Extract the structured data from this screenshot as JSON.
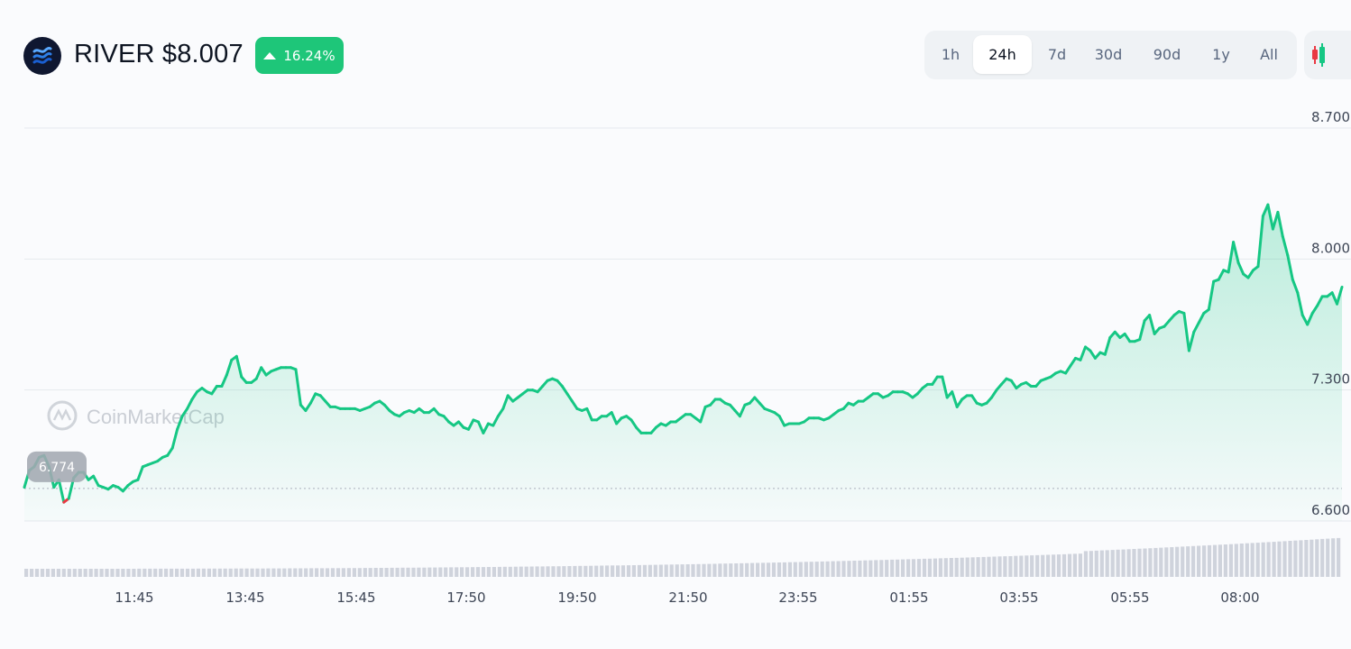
{
  "header": {
    "title": "RIVER $8.007",
    "change": "16.24%",
    "change_direction": "up",
    "logo_icon": "river-logo-icon"
  },
  "ranges": [
    {
      "label": "1h",
      "active": false
    },
    {
      "label": "24h",
      "active": true
    },
    {
      "label": "7d",
      "active": false
    },
    {
      "label": "30d",
      "active": false
    },
    {
      "label": "90d",
      "active": false
    },
    {
      "label": "1y",
      "active": false
    },
    {
      "label": "All",
      "active": false
    }
  ],
  "candle_icon": "candlestick-icon",
  "watermark": "CoinMarketCap",
  "colors": {
    "up": "#16c784",
    "down": "#ea3943",
    "accent": "#1ec679"
  },
  "chart_data": {
    "type": "area",
    "title": "",
    "xlabel": "",
    "ylabel": "",
    "ylim": [
      6.6,
      8.7
    ],
    "y_ticks": [
      "8.700",
      "8.000",
      "7.300",
      "6.600"
    ],
    "x_ticks": [
      "11:45",
      "13:45",
      "15:45",
      "17:50",
      "19:50",
      "21:50",
      "23:55",
      "01:55",
      "03:55",
      "05:55",
      "08:00"
    ],
    "reference_price": 6.774,
    "reference_label": "6.774",
    "grid": true,
    "series": [
      {
        "values": [
          6.78,
          6.87,
          6.89,
          6.94,
          6.95,
          6.89,
          6.78,
          6.82,
          6.7,
          6.72,
          6.83,
          6.86,
          6.86,
          6.82,
          6.84,
          6.79,
          6.78,
          6.77,
          6.79,
          6.78,
          6.76,
          6.79,
          6.81,
          6.82,
          6.89,
          6.9,
          6.91,
          6.92,
          6.94,
          6.95,
          6.99,
          7.09,
          7.16,
          7.2,
          7.25,
          7.29,
          7.31,
          7.29,
          7.28,
          7.32,
          7.32,
          7.38,
          7.46,
          7.48,
          7.37,
          7.34,
          7.34,
          7.36,
          7.42,
          7.38,
          7.4,
          7.41,
          7.42,
          7.42,
          7.42,
          7.41,
          7.22,
          7.19,
          7.23,
          7.28,
          7.27,
          7.24,
          7.21,
          7.21,
          7.2,
          7.2,
          7.2,
          7.2,
          7.19,
          7.2,
          7.21,
          7.23,
          7.24,
          7.22,
          7.19,
          7.17,
          7.16,
          7.18,
          7.19,
          7.18,
          7.2,
          7.18,
          7.18,
          7.2,
          7.17,
          7.16,
          7.13,
          7.11,
          7.13,
          7.1,
          7.09,
          7.14,
          7.13,
          7.07,
          7.12,
          7.11,
          7.16,
          7.2,
          7.27,
          7.24,
          7.26,
          7.28,
          7.3,
          7.3,
          7.29,
          7.32,
          7.35,
          7.36,
          7.35,
          7.32,
          7.28,
          7.24,
          7.2,
          7.19,
          7.2,
          7.14,
          7.14,
          7.16,
          7.16,
          7.18,
          7.12,
          7.15,
          7.16,
          7.14,
          7.1,
          7.07,
          7.07,
          7.07,
          7.1,
          7.12,
          7.11,
          7.13,
          7.13,
          7.15,
          7.17,
          7.17,
          7.15,
          7.13,
          7.21,
          7.22,
          7.25,
          7.25,
          7.23,
          7.22,
          7.19,
          7.16,
          7.22,
          7.23,
          7.26,
          7.23,
          7.2,
          7.19,
          7.18,
          7.16,
          7.11,
          7.12,
          7.12,
          7.12,
          7.13,
          7.15,
          7.15,
          7.15,
          7.14,
          7.15,
          7.17,
          7.19,
          7.2,
          7.23,
          7.22,
          7.24,
          7.24,
          7.26,
          7.28,
          7.28,
          7.26,
          7.27,
          7.29,
          7.29,
          7.29,
          7.28,
          7.26,
          7.28,
          7.31,
          7.33,
          7.33,
          7.37,
          7.37,
          7.26,
          7.29,
          7.21,
          7.25,
          7.27,
          7.27,
          7.23,
          7.22,
          7.23,
          7.26,
          7.3,
          7.33,
          7.36,
          7.35,
          7.31,
          7.33,
          7.34,
          7.32,
          7.32,
          7.35,
          7.36,
          7.37,
          7.39,
          7.4,
          7.39,
          7.43,
          7.47,
          7.46,
          7.53,
          7.51,
          7.47,
          7.5,
          7.49,
          7.58,
          7.61,
          7.58,
          7.6,
          7.56,
          7.56,
          7.57,
          7.67,
          7.7,
          7.6,
          7.63,
          7.64,
          7.67,
          7.7,
          7.72,
          7.71,
          7.51,
          7.61,
          7.66,
          7.71,
          7.73,
          7.88,
          7.89,
          7.94,
          7.93,
          8.09,
          7.98,
          7.92,
          7.9,
          7.94,
          7.96,
          8.23,
          8.29,
          8.16,
          8.25,
          8.12,
          8.02,
          7.89,
          7.82,
          7.7,
          7.65,
          7.71,
          7.75,
          7.8,
          7.8,
          7.82,
          7.76,
          7.85
        ]
      }
    ]
  }
}
